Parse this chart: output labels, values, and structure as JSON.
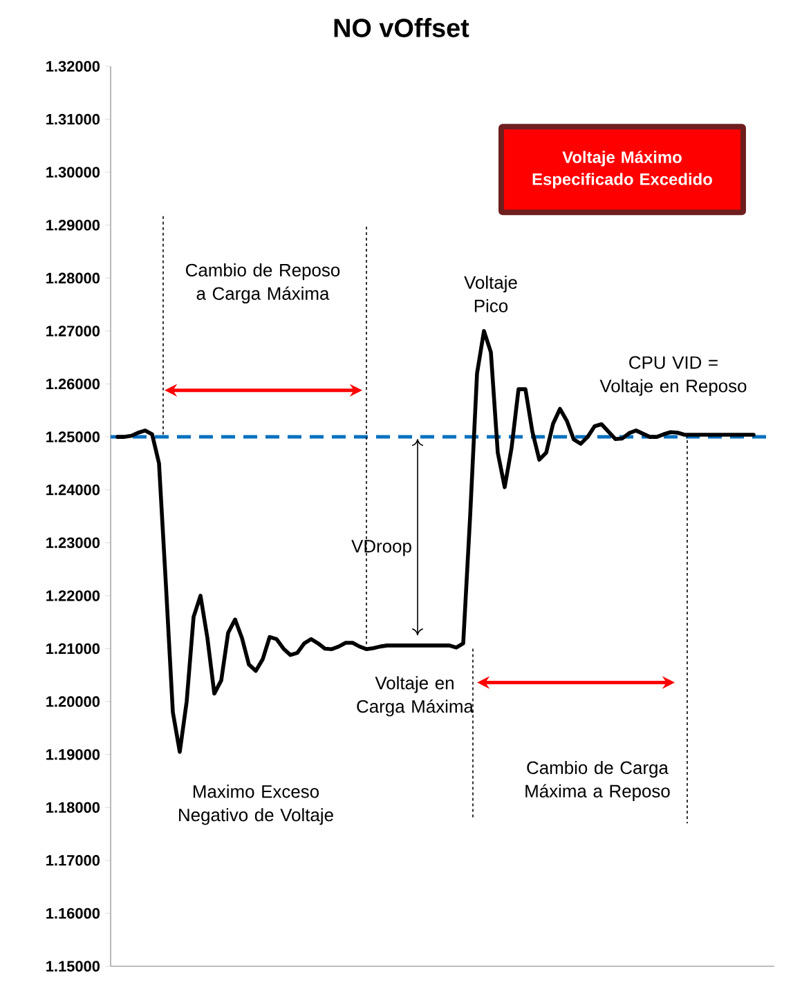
{
  "chart_data": {
    "type": "line",
    "title": "NO vOffset",
    "categories": [
      null,
      null,
      null,
      null,
      null,
      null,
      null,
      null,
      null,
      null,
      null,
      null,
      null,
      null,
      null,
      null,
      null,
      null,
      null,
      null,
      null,
      null,
      null,
      null,
      null,
      null,
      null,
      null,
      null,
      null,
      null,
      null,
      null,
      null,
      null,
      null,
      null,
      null,
      null,
      null,
      null,
      null,
      null,
      null,
      null,
      null,
      null,
      null,
      null,
      null,
      null,
      null,
      null,
      null,
      null,
      null,
      null,
      null,
      null,
      null,
      null,
      null,
      null,
      null,
      null,
      null,
      null,
      null,
      null,
      null,
      null,
      null,
      null,
      null,
      null,
      null,
      null,
      null,
      null,
      null,
      null,
      null,
      null,
      null,
      null,
      null,
      null,
      null,
      null,
      null,
      null,
      null,
      null
    ],
    "series": [
      {
        "color": "#000000",
        "values": [
          1.25,
          1.25,
          1.2502,
          1.2508,
          1.2512,
          1.2505,
          1.245,
          1.222,
          1.198,
          1.1905,
          1.2,
          1.216,
          1.22,
          1.212,
          1.2015,
          1.204,
          1.213,
          1.2155,
          1.212,
          1.207,
          1.2058,
          1.208,
          1.2122,
          1.2118,
          1.21,
          1.2088,
          1.2092,
          1.211,
          1.2118,
          1.211,
          1.21,
          1.2099,
          1.2104,
          1.2111,
          1.2111,
          1.2104,
          1.2099,
          1.2101,
          1.2104,
          1.2106,
          1.2106,
          1.2106,
          1.2106,
          1.2106,
          1.2106,
          1.2106,
          1.2106,
          1.2106,
          1.2106,
          1.2102,
          1.211,
          1.235,
          1.262,
          1.27,
          1.266,
          1.247,
          1.2405,
          1.248,
          1.259,
          1.259,
          1.251,
          1.2457,
          1.247,
          1.2525,
          1.2553,
          1.253,
          1.2495,
          1.2487,
          1.25,
          1.252,
          1.2524,
          1.251,
          1.2496,
          1.2497,
          1.2507,
          1.2512,
          1.2506,
          1.25,
          1.25,
          1.2505,
          1.2509,
          1.2508,
          1.2504,
          1.2504,
          1.2504,
          1.2504,
          1.2504,
          1.2504,
          1.2504,
          1.2504,
          1.2504,
          1.2504,
          1.2504
        ]
      }
    ],
    "ylim": [
      1.15,
      1.32
    ],
    "yticks": [
      {
        "value": 1.15,
        "label": "1.15000"
      },
      {
        "value": 1.16,
        "label": "1.16000"
      },
      {
        "value": 1.17,
        "label": "1.17000"
      },
      {
        "value": 1.18,
        "label": "1.18000"
      },
      {
        "value": 1.19,
        "label": "1.19000"
      },
      {
        "value": 1.2,
        "label": "1.20000"
      },
      {
        "value": 1.21,
        "label": "1.21000"
      },
      {
        "value": 1.22,
        "label": "1.22000"
      },
      {
        "value": 1.23,
        "label": "1.23000"
      },
      {
        "value": 1.24,
        "label": "1.24000"
      },
      {
        "value": 1.25,
        "label": "1.25000"
      },
      {
        "value": 1.26,
        "label": "1.26000"
      },
      {
        "value": 1.27,
        "label": "1.27000"
      },
      {
        "value": 1.28,
        "label": "1.28000"
      },
      {
        "value": 1.29,
        "label": "1.29000"
      },
      {
        "value": 1.3,
        "label": "1.30000"
      },
      {
        "value": 1.31,
        "label": "1.31000"
      },
      {
        "value": 1.32,
        "label": "1.32000"
      }
    ],
    "ref_lines": [
      {
        "axis": "y",
        "value": 1.25,
        "color": "#0070c0",
        "line_style": "dashed"
      }
    ],
    "tick_labels": "y",
    "annotations": [
      "Voltaje Máximo Especificado Excedido",
      "Cambio de Reposo a Carga Máxima",
      "Voltaje Pico",
      "CPU VID = Voltaje en Reposo",
      "VDroop",
      "Voltaje en Carga Máxima",
      "Maximo Exceso Negativo de Voltaje",
      "Cambio de Carga Máxima a Reposo"
    ]
  }
}
